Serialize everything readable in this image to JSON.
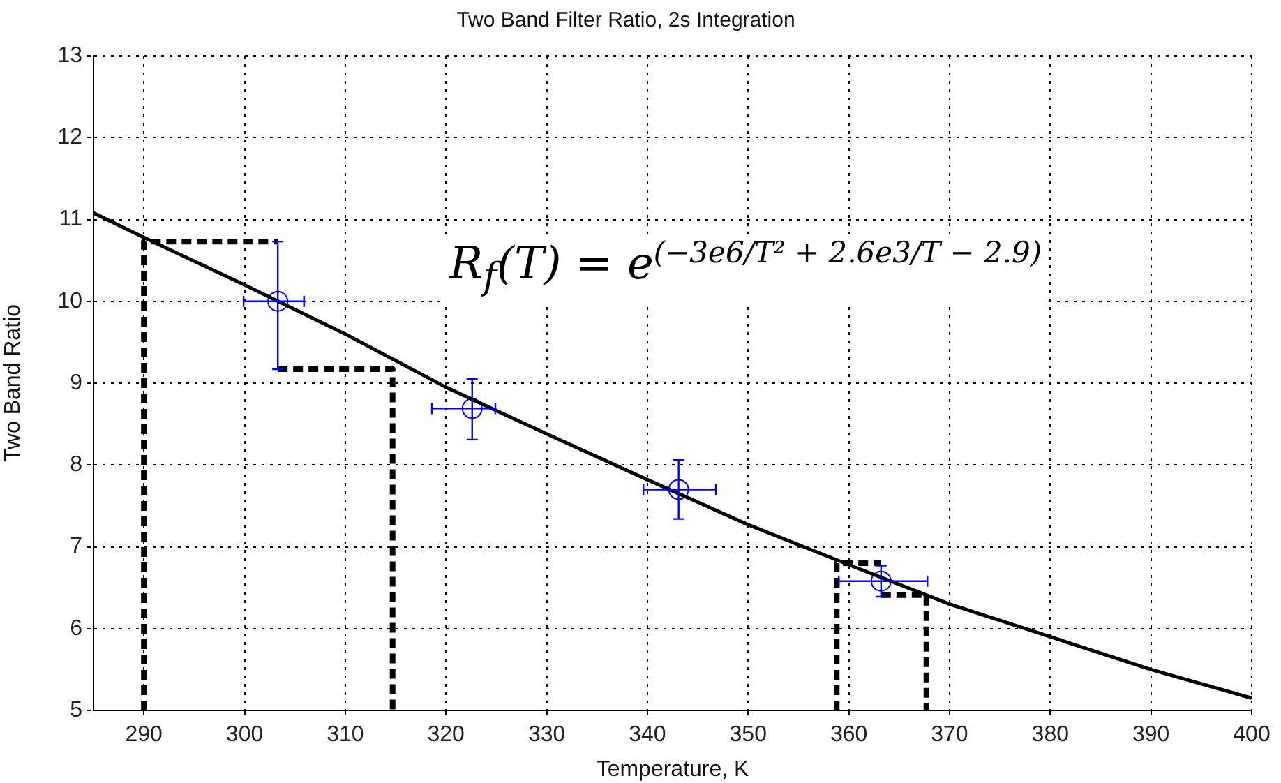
{
  "chart_data": {
    "type": "line",
    "title": "Two Band Filter Ratio, 2s Integration",
    "xlabel": "Temperature, K",
    "ylabel": "Two Band Ratio",
    "xlim": [
      285,
      400
    ],
    "xticks": [
      290,
      300,
      310,
      320,
      330,
      340,
      350,
      360,
      370,
      380,
      390,
      400
    ],
    "ylim": [
      5,
      13
    ],
    "yticks": [
      5,
      6,
      7,
      8,
      9,
      10,
      11,
      12,
      13
    ],
    "grid": true,
    "legend": false,
    "annotations": [
      "R$_{f}$(T) = e$^{(−3e6/T² + 2.6e3/T − 2.9)}$"
    ],
    "series": [
      {
        "type": "line",
        "color": "#000000",
        "marker": "none",
        "line_style": "solid",
        "x": [
          285,
          290,
          300,
          310,
          320,
          330,
          340,
          350,
          360,
          370,
          380,
          390,
          400
        ],
        "values": [
          11.08,
          10.78,
          10.2,
          9.6,
          8.95,
          8.38,
          7.82,
          7.27,
          6.78,
          6.3,
          5.9,
          5.5,
          5.15
        ]
      },
      {
        "type": "scatter",
        "color": "#0000ff",
        "marker": "circle",
        "x": [
          303.3,
          322.6,
          343.1,
          363.2
        ],
        "values": [
          10.0,
          8.69,
          7.7,
          6.58
        ],
        "errors": [
          [
            9.17,
            10.73
          ],
          [
            8.31,
            9.05
          ],
          [
            7.34,
            8.06
          ],
          [
            6.39,
            6.77
          ]
        ],
        "xerrors": [
          [
            299.9,
            305.9
          ],
          [
            318.6,
            324.9
          ],
          [
            339.6,
            346.8
          ],
          [
            359.0,
            367.8
          ]
        ]
      },
      {
        "type": "line",
        "color": "#000000",
        "marker": "none",
        "line_style": "dashed",
        "x": [
          290,
          290,
          303.3
        ],
        "values": [
          5,
          10.73,
          10.73
        ]
      },
      {
        "type": "line",
        "color": "#000000",
        "marker": "none",
        "line_style": "dashed",
        "x": [
          303.3,
          314.7,
          314.7
        ],
        "values": [
          9.17,
          9.17,
          5
        ]
      },
      {
        "type": "line",
        "color": "#000000",
        "marker": "none",
        "line_style": "dashed",
        "x": [
          358.8,
          358.8,
          363.2
        ],
        "values": [
          5,
          6.8,
          6.8
        ]
      },
      {
        "type": "line",
        "color": "#000000",
        "marker": "none",
        "line_style": "dashed",
        "x": [
          363.2,
          367.7,
          367.7
        ],
        "values": [
          6.41,
          6.41,
          5
        ]
      }
    ]
  }
}
